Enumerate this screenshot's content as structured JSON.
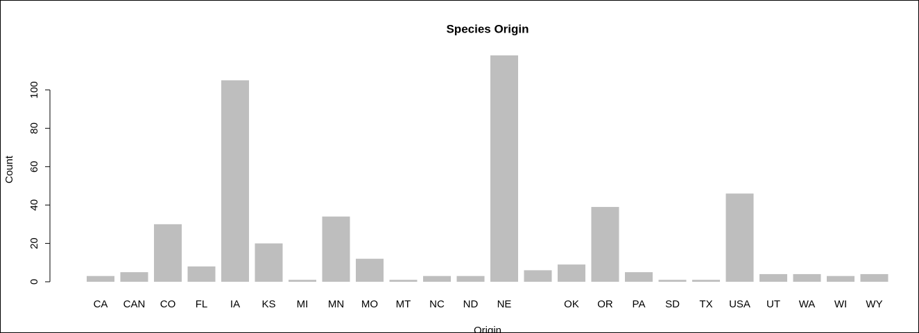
{
  "chart_data": {
    "type": "bar",
    "title": "Species Origin",
    "x_label": "Origin",
    "y_label": "Count",
    "categories": [
      "CA",
      "CAN",
      "CO",
      "FL",
      "IA",
      "KS",
      "MI",
      "MN",
      "MO",
      "MT",
      "NC",
      "ND",
      "NE",
      null,
      "OK",
      "OR",
      "PA",
      "SD",
      "TX",
      "USA",
      "UT",
      "WA",
      "WI",
      "WY"
    ],
    "values": [
      3,
      5,
      30,
      8,
      105,
      20,
      1,
      34,
      12,
      1,
      3,
      3,
      118,
      6,
      9,
      39,
      5,
      1,
      1,
      46,
      4,
      4,
      3,
      4
    ],
    "color": "#bebebe",
    "ylim": [
      0,
      118
    ],
    "yticks": [
      0,
      20,
      40,
      60,
      80,
      100
    ]
  }
}
